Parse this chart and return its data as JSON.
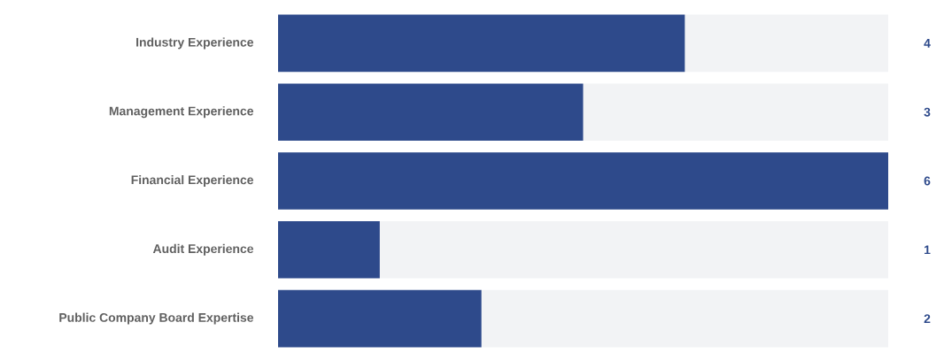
{
  "chart_data": {
    "type": "bar",
    "orientation": "horizontal",
    "stacked": true,
    "tick_labels": "y",
    "categories": [
      "Industry Experience",
      "Management Experience",
      "Financial Experience",
      "Audit Experience",
      "Public Company Board Expertise"
    ],
    "series": [
      {
        "color": "#2e4a8b",
        "values": [
          4,
          3,
          6,
          1,
          2
        ],
        "value_labels": [
          "4",
          "3",
          "6",
          "1",
          "2"
        ]
      },
      {
        "color": "#f2f3f5",
        "values": [
          2,
          3,
          0,
          5,
          4
        ]
      }
    ]
  }
}
